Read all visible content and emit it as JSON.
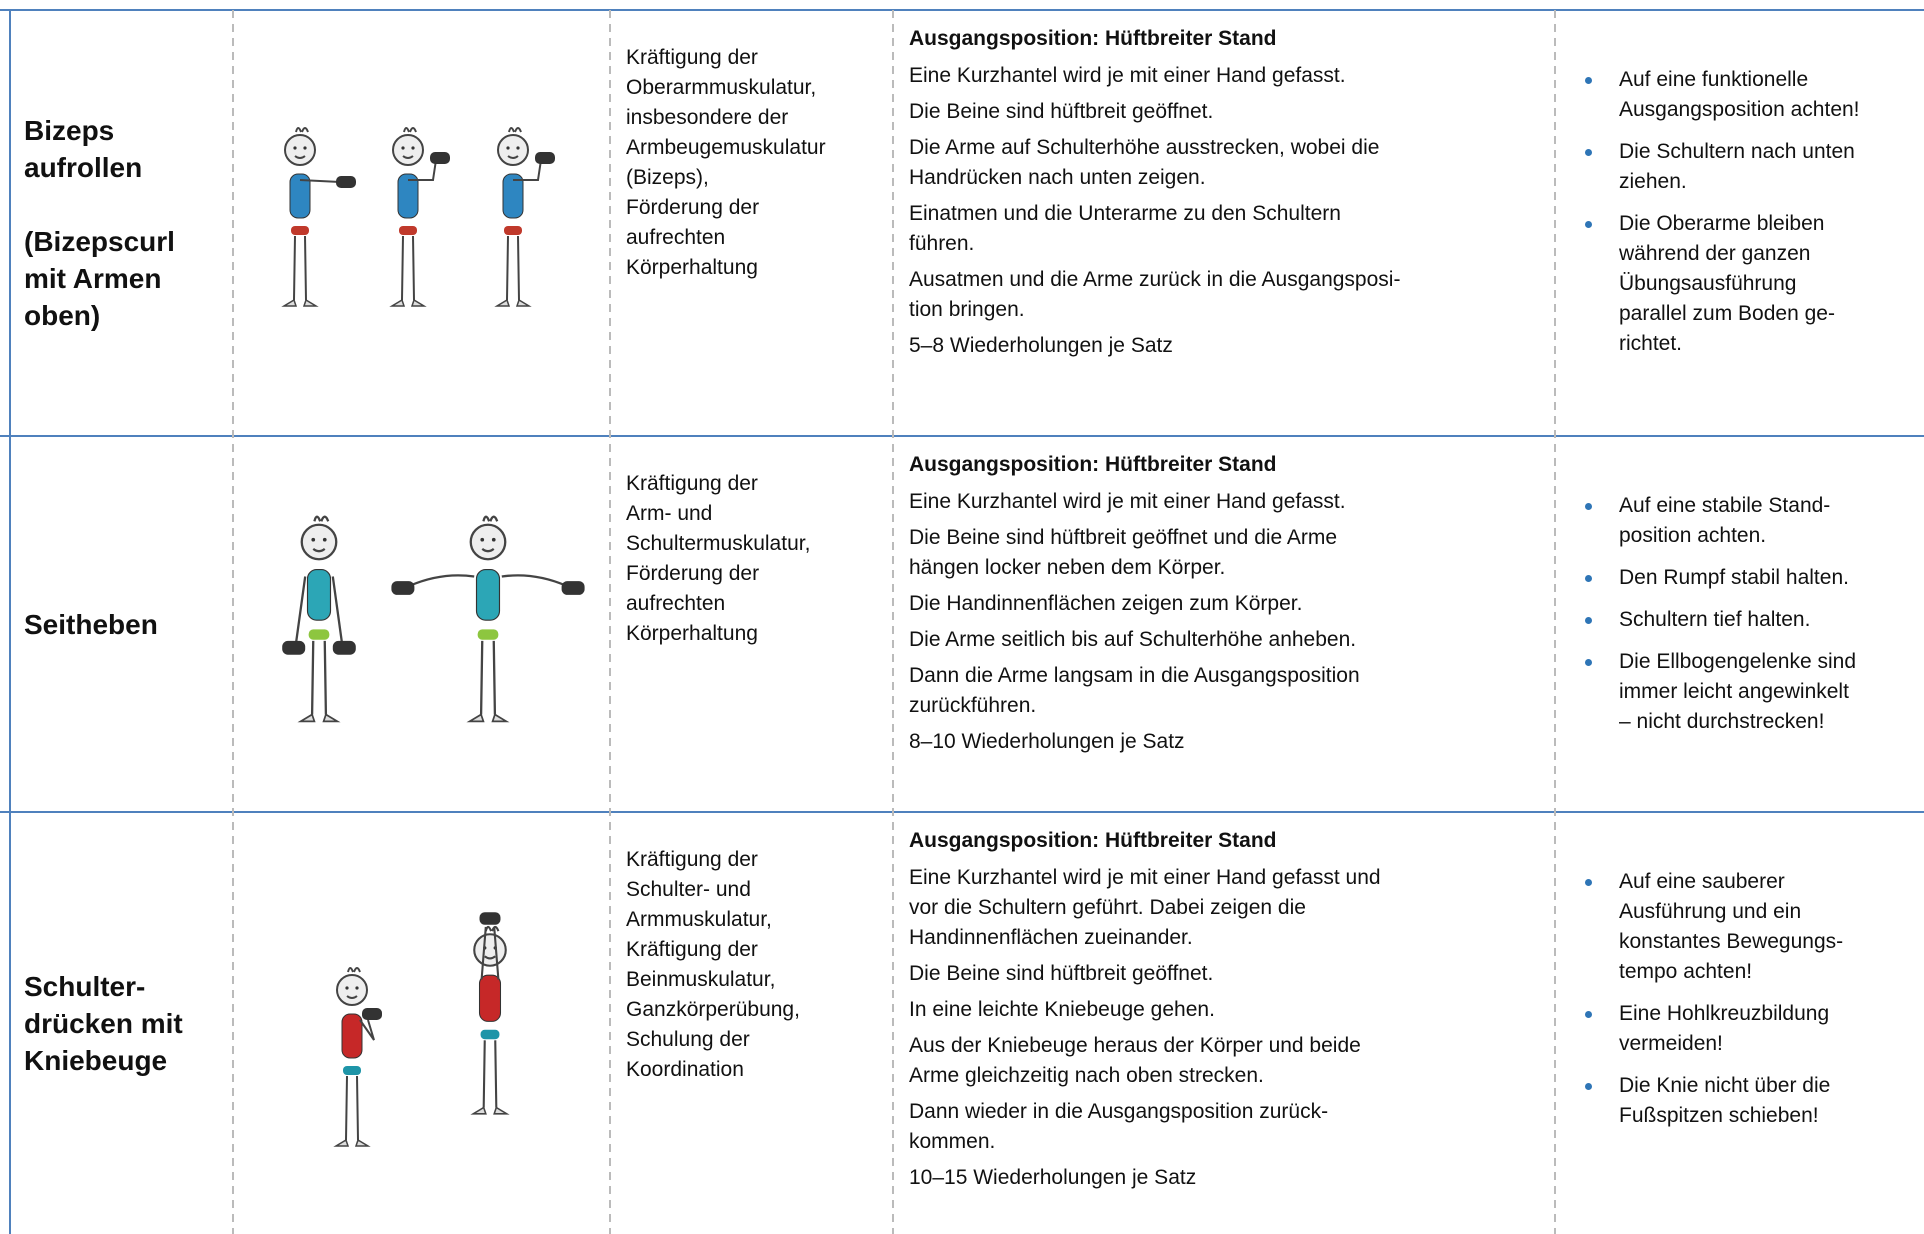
{
  "rows": [
    {
      "name": [
        [
          "Bizeps",
          "aufrollen"
        ],
        [
          "(Bizepscurl",
          "mit Armen",
          "oben)"
        ]
      ],
      "goal": [
        "Kräftigung der",
        "Oberarmmuskulatur,",
        "insbesondere der",
        "Armbeugemuskulatur",
        "(Bizeps),",
        "Förderung der",
        "aufrechten",
        "Körperhaltung"
      ],
      "instructions": {
        "heading": "Ausgangsposition: Hüftbreiter Stand",
        "paragraphs": [
          [
            "Eine Kurzhantel wird je mit einer Hand gefasst."
          ],
          [
            "Die Beine sind hüftbreit geöffnet."
          ],
          [
            "Die Arme auf Schulterhöhe ausstrecken, wobei die",
            "Handrücken nach unten zeigen."
          ],
          [
            "Einatmen und die Unterarme zu den Schultern",
            "führen."
          ],
          [
            "Ausatmen und die Arme zurück in die Ausgangsposi-",
            "tion bringen."
          ],
          [
            "5–8 Wiederholungen je Satz"
          ]
        ]
      },
      "tips": [
        [
          "Auf eine funktionelle",
          "Ausgangsposition achten!"
        ],
        [
          "Die Schultern nach unten",
          "ziehen."
        ],
        [
          "Die Oberarme bleiben",
          "während der ganzen",
          "Übungsausführung",
          "parallel zum Boden ge-",
          "richtet."
        ]
      ]
    },
    {
      "name": [
        [
          "Seitheben"
        ]
      ],
      "goal": [
        "Kräftigung der",
        "Arm- und",
        "Schultermuskulatur,",
        "Förderung der",
        "aufrechten",
        "Körperhaltung"
      ],
      "instructions": {
        "heading": "Ausgangsposition: Hüftbreiter Stand",
        "paragraphs": [
          [
            "Eine Kurzhantel wird je mit einer Hand gefasst."
          ],
          [
            "Die Beine sind hüftbreit geöffnet und die Arme",
            "hängen locker neben dem Körper."
          ],
          [
            "Die Handinnenflächen zeigen zum Körper."
          ],
          [
            "Die Arme seitlich bis auf Schulterhöhe anheben."
          ],
          [
            "Dann die Arme langsam in die Ausgangsposition",
            "zurückführen."
          ],
          [
            "8–10 Wiederholungen je Satz"
          ]
        ]
      },
      "tips": [
        [
          "Auf eine stabile Stand-",
          "position achten."
        ],
        [
          "Den Rumpf stabil halten."
        ],
        [
          "Schultern tief halten."
        ],
        [
          "Die Ellbogengelenke sind",
          "immer leicht angewinkelt",
          "– nicht durchstrecken!"
        ]
      ]
    },
    {
      "name": [
        [
          "Schulter-",
          "drücken mit",
          "Kniebeuge"
        ]
      ],
      "goal": [
        "Kräftigung der",
        "Schulter- und",
        "Armmuskulatur,",
        "Kräftigung der",
        "Beinmuskulatur,",
        "Ganzkörperübung,",
        "Schulung der",
        "Koordination"
      ],
      "instructions": {
        "heading": "Ausgangsposition: Hüftbreiter Stand",
        "paragraphs": [
          [
            "Eine Kurzhantel wird je mit einer Hand gefasst und",
            "vor die Schultern geführt. Dabei zeigen die",
            "Handinnenflächen zueinander."
          ],
          [
            "Die Beine sind hüftbreit geöffnet."
          ],
          [
            "In eine leichte Kniebeuge gehen."
          ],
          [
            "Aus der Kniebeuge heraus der Körper und beide",
            "Arme gleichzeitig nach oben strecken."
          ],
          [
            "Dann wieder in die Ausgangsposition zurück-",
            "kommen."
          ],
          [
            "10–15 Wiederholungen je Satz"
          ]
        ]
      },
      "tips": [
        [
          "Auf eine sauberer",
          "Ausführung und ein",
          "konstantes Bewegungs-",
          "tempo achten!"
        ],
        [
          "Eine Hohlkreuzbildung",
          "vermeiden!"
        ],
        [
          "Die Knie nicht über die",
          "Fußspitzen schieben!"
        ]
      ]
    }
  ]
}
